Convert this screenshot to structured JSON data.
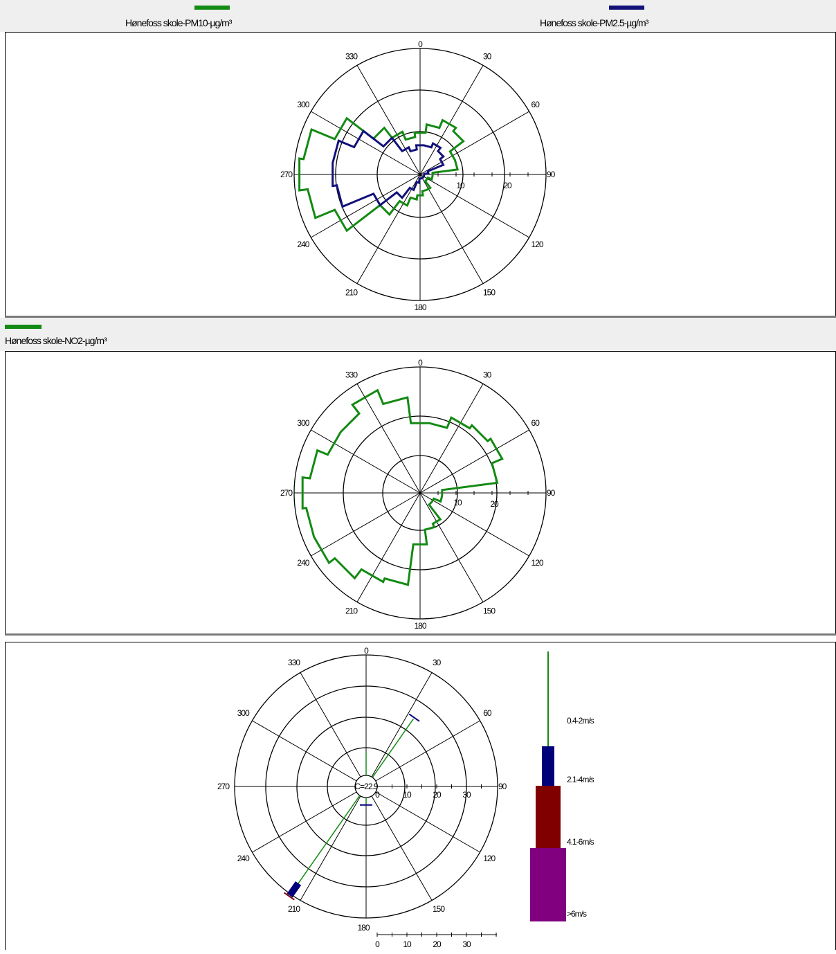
{
  "legend_top": [
    {
      "label": "Hønefoss skole-PM10-µg/m³",
      "color": "#138a13"
    },
    {
      "label": "Hønefoss skole-PM2.5-µg/m³",
      "color": "#11117a"
    }
  ],
  "legend_mid": [
    {
      "label": "Hønefoss skole-NO2-µg/m³",
      "color": "#138a13"
    }
  ],
  "chart_data": [
    {
      "type": "polar-rose",
      "angle_labels": [
        "0",
        "30",
        "60",
        "90",
        "120",
        "150",
        "180",
        "210",
        "240",
        "270",
        "300",
        "330"
      ],
      "r_ticks": [
        "10",
        "20"
      ],
      "rmax": 30,
      "series": [
        {
          "name": "Hønefoss skole-PM10-µg/m³",
          "color": "#138a13",
          "values": [
            10,
            12,
            14,
            13,
            9,
            9,
            3,
            3,
            2,
            2,
            4,
            4,
            5,
            6,
            8,
            12,
            22,
            27,
            29,
            28,
            22,
            14,
            11,
            9
          ]
        },
        {
          "name": "Hønefoss skole-PM2.5-µg/m³",
          "color": "#11117a",
          "values": [
            7,
            7,
            8,
            7,
            6,
            2,
            1,
            1,
            1,
            1,
            1,
            1,
            1,
            2,
            4,
            7,
            12,
            20,
            21,
            21,
            17,
            11,
            7,
            6
          ]
        }
      ]
    },
    {
      "type": "polar-rose",
      "angle_labels": [
        "0",
        "30",
        "60",
        "90",
        "120",
        "150",
        "180",
        "210",
        "240",
        "270",
        "300",
        "330"
      ],
      "r_ticks": [
        "10",
        "20"
      ],
      "rmax": 34,
      "series": [
        {
          "name": "Hønefoss skole-NO2-µg/m³",
          "color": "#138a13",
          "values": [
            19,
            19,
            22,
            23,
            24,
            21,
            6,
            6,
            4,
            4,
            9,
            10,
            14,
            25,
            26,
            29,
            31,
            31,
            32,
            30,
            27,
            27,
            30,
            26
          ]
        }
      ]
    },
    {
      "type": "wind-rose",
      "calm_label": "C=22.9",
      "angle_labels": [
        "0",
        "30",
        "60",
        "90",
        "120",
        "150",
        "180",
        "210",
        "240",
        "270",
        "300",
        "330"
      ],
      "r_ticks": [
        "0",
        "10",
        "20",
        "30"
      ],
      "scale_ticks": [
        "0",
        "10",
        "20",
        "30"
      ],
      "speed_classes": [
        {
          "label": "0.4-2m/s",
          "color": "#138a13"
        },
        {
          "label": "2.1-4m/s",
          "color": "#00007a"
        },
        {
          "label": "4.1-6m/s",
          "color": "#800000"
        },
        {
          "label": ">6m/s",
          "color": "#800080"
        }
      ],
      "directions": [
        {
          "angle": 0,
          "segments": [
            8,
            0,
            0,
            0
          ]
        },
        {
          "angle": 35,
          "segments": [
            24,
            0.5,
            0,
            0
          ]
        },
        {
          "angle": 180,
          "segments": [
            2,
            0.5,
            0,
            0
          ]
        },
        {
          "angle": 215,
          "segments": [
            36,
            5,
            0.3,
            0
          ]
        }
      ]
    }
  ]
}
